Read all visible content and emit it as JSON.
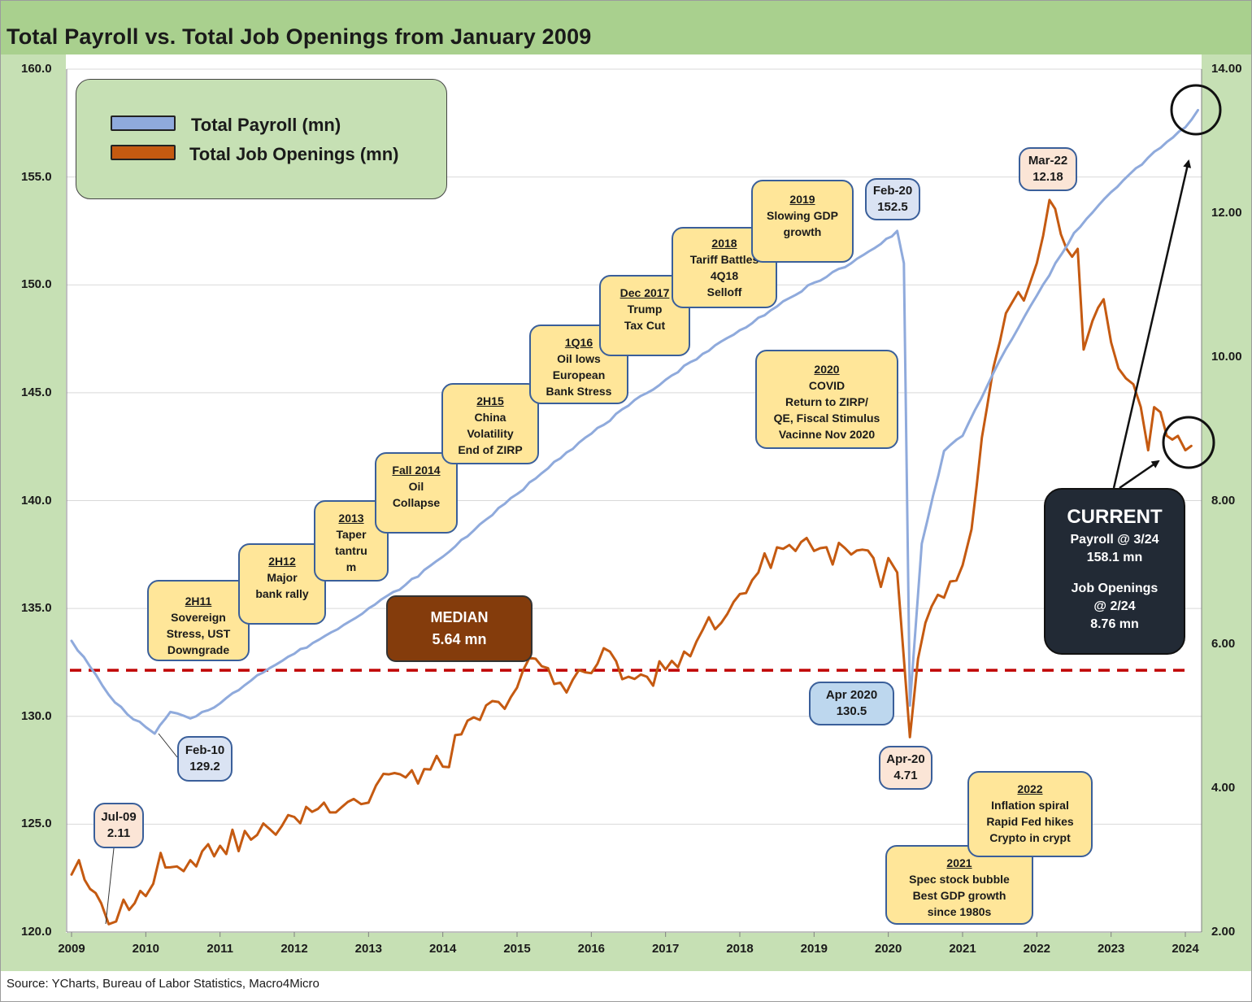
{
  "chart_data": {
    "type": "line",
    "title": "Total Payroll vs. Total Job Openings from January 2009",
    "source": "Source: YCharts, Bureau of Labor Statistics, Macro4Micro",
    "x_ticks": [
      "2009",
      "2010",
      "2011",
      "2012",
      "2013",
      "2014",
      "2015",
      "2016",
      "2017",
      "2018",
      "2019",
      "2020",
      "2021",
      "2022",
      "2023",
      "2024"
    ],
    "x_range": [
      2009.0,
      2024.25
    ],
    "y_left": {
      "range": [
        120.0,
        160.0
      ],
      "ticks": [
        "160.0",
        "155.0",
        "150.0",
        "145.0",
        "140.0",
        "135.0",
        "130.0",
        "125.0",
        "120.0"
      ]
    },
    "y_right": {
      "range": [
        2.0,
        14.0
      ],
      "ticks": [
        "14.00",
        "12.00",
        "10.00",
        "8.00",
        "6.00",
        "4.00",
        "2.00"
      ]
    },
    "grid": true,
    "legend": {
      "position": "top-left",
      "entries": [
        {
          "label": "Total Payroll (mn)",
          "color": "#8faadc"
        },
        {
          "label": "Total Job Openings (mn)",
          "color": "#c55a11"
        }
      ]
    },
    "series": [
      {
        "name": "Total Payroll (mn)",
        "axis": "left",
        "color": "#8faadc",
        "points": [
          [
            2009.0,
            133.5
          ],
          [
            2009.25,
            132.3
          ],
          [
            2009.5,
            131.0
          ],
          [
            2009.75,
            130.1
          ],
          [
            2010.0,
            129.5
          ],
          [
            2010.12,
            129.2
          ],
          [
            2010.33,
            130.2
          ],
          [
            2010.6,
            129.9
          ],
          [
            2011.0,
            130.6
          ],
          [
            2011.5,
            131.9
          ],
          [
            2012.0,
            132.9
          ],
          [
            2012.5,
            133.9
          ],
          [
            2013.0,
            135.0
          ],
          [
            2013.5,
            136.1
          ],
          [
            2014.0,
            137.4
          ],
          [
            2014.5,
            138.9
          ],
          [
            2015.0,
            140.3
          ],
          [
            2015.5,
            141.8
          ],
          [
            2016.0,
            143.1
          ],
          [
            2016.5,
            144.4
          ],
          [
            2017.0,
            145.6
          ],
          [
            2017.5,
            146.8
          ],
          [
            2018.0,
            147.9
          ],
          [
            2018.5,
            149.0
          ],
          [
            2019.0,
            150.1
          ],
          [
            2019.5,
            151.0
          ],
          [
            2019.9,
            151.9
          ],
          [
            2020.12,
            152.5
          ],
          [
            2020.21,
            151.0
          ],
          [
            2020.29,
            130.5
          ],
          [
            2020.45,
            138.0
          ],
          [
            2020.75,
            142.3
          ],
          [
            2021.0,
            143.0
          ],
          [
            2021.5,
            146.5
          ],
          [
            2022.0,
            149.5
          ],
          [
            2022.5,
            152.4
          ],
          [
            2023.0,
            154.3
          ],
          [
            2023.5,
            155.9
          ],
          [
            2024.0,
            157.3
          ],
          [
            2024.17,
            158.1
          ]
        ]
      },
      {
        "name": "Total Job Openings (mn)",
        "axis": "right",
        "color": "#c55a11",
        "points": [
          [
            2009.0,
            2.8
          ],
          [
            2009.1,
            3.0
          ],
          [
            2009.25,
            2.6
          ],
          [
            2009.4,
            2.4
          ],
          [
            2009.5,
            2.11
          ],
          [
            2009.7,
            2.45
          ],
          [
            2010.0,
            2.5
          ],
          [
            2010.2,
            3.1
          ],
          [
            2010.33,
            2.9
          ],
          [
            2010.6,
            3.0
          ],
          [
            2011.0,
            3.2
          ],
          [
            2011.5,
            3.35
          ],
          [
            2012.0,
            3.6
          ],
          [
            2012.4,
            3.8
          ],
          [
            2012.8,
            3.85
          ],
          [
            2013.0,
            3.8
          ],
          [
            2013.2,
            4.2
          ],
          [
            2013.5,
            4.15
          ],
          [
            2014.0,
            4.3
          ],
          [
            2014.25,
            4.75
          ],
          [
            2014.5,
            4.95
          ],
          [
            2014.75,
            5.2
          ],
          [
            2015.0,
            5.4
          ],
          [
            2015.25,
            5.8
          ],
          [
            2015.5,
            5.45
          ],
          [
            2016.0,
            5.6
          ],
          [
            2016.25,
            5.9
          ],
          [
            2016.5,
            5.55
          ],
          [
            2016.75,
            5.55
          ],
          [
            2017.0,
            5.65
          ],
          [
            2017.25,
            5.9
          ],
          [
            2017.5,
            6.2
          ],
          [
            2017.75,
            6.3
          ],
          [
            2018.0,
            6.7
          ],
          [
            2018.25,
            7.0
          ],
          [
            2018.5,
            7.35
          ],
          [
            2018.75,
            7.3
          ],
          [
            2018.9,
            7.48
          ],
          [
            2019.0,
            7.3
          ],
          [
            2019.5,
            7.25
          ],
          [
            2019.8,
            7.2
          ],
          [
            2019.9,
            6.8
          ],
          [
            2020.0,
            7.2
          ],
          [
            2020.12,
            7.0
          ],
          [
            2020.29,
            4.71
          ],
          [
            2020.4,
            5.8
          ],
          [
            2020.5,
            6.3
          ],
          [
            2020.75,
            6.65
          ],
          [
            2021.0,
            7.1
          ],
          [
            2021.12,
            7.6
          ],
          [
            2021.33,
            9.3
          ],
          [
            2021.5,
            10.2
          ],
          [
            2021.75,
            10.9
          ],
          [
            2021.9,
            11.0
          ],
          [
            2022.0,
            11.3
          ],
          [
            2022.17,
            12.18
          ],
          [
            2022.4,
            11.5
          ],
          [
            2022.55,
            11.5
          ],
          [
            2022.63,
            10.1
          ],
          [
            2022.75,
            10.5
          ],
          [
            2022.9,
            10.8
          ],
          [
            2023.0,
            10.2
          ],
          [
            2023.2,
            9.7
          ],
          [
            2023.4,
            9.3
          ],
          [
            2023.5,
            8.7
          ],
          [
            2023.58,
            9.3
          ],
          [
            2023.75,
            8.9
          ],
          [
            2023.9,
            8.9
          ],
          [
            2024.0,
            8.7
          ],
          [
            2024.08,
            8.76
          ]
        ]
      },
      {
        "name": "Median",
        "axis": "right",
        "style": "dashed",
        "color": "#c00000",
        "value": 5.64
      }
    ],
    "annotations": {
      "legend_payroll": "Total Payroll (mn)",
      "legend_openings": "Total Job Openings (mn)",
      "median_label": "MEDIAN",
      "median_value": "5.64 mn",
      "current_title": "CURRENT",
      "current_payroll_1": "Payroll @ 3/24",
      "current_payroll_2": "158.1 mn",
      "current_openings_1": "Job Openings",
      "current_openings_2": "@ 2/24",
      "current_openings_3": "8.76 mn",
      "events": {
        "e2h11": {
          "h": "2H11",
          "l1": "Sovereign",
          "l2": "Stress, UST",
          "l3": "Downgrade"
        },
        "e2h12": {
          "h": "2H12",
          "l1": "Major",
          "l2": "bank rally"
        },
        "e2013": {
          "h": "2013",
          "l1": "Taper",
          "l2": "tantru",
          "l3": "m"
        },
        "efall14": {
          "h": "Fall 2014",
          "l1": "Oil",
          "l2": "Collapse"
        },
        "e2h15": {
          "h": "2H15",
          "l1": "China",
          "l2": "Volatility",
          "l3": "End of ZIRP"
        },
        "e1q16": {
          "h": "1Q16",
          "l1": "Oil lows",
          "l2": "European",
          "l3": "Bank Stress"
        },
        "edec17": {
          "h": "Dec 2017",
          "l1": "Trump",
          "l2": "Tax Cut"
        },
        "e2018": {
          "h": "2018",
          "l1": "Tariff Battles",
          "l2": "4Q18",
          "l3": "Selloff"
        },
        "e2019": {
          "h": "2019",
          "l1": "Slowing GDP",
          "l2": "growth"
        },
        "e2020": {
          "h": "2020",
          "l1": "COVID",
          "l2": "Return to ZIRP/",
          "l3": "QE, Fiscal Stimulus",
          "l4": "Vacinne Nov 2020"
        },
        "e2021": {
          "h": "2021",
          "l1": "Spec stock bubble",
          "l2": "Best GDP growth",
          "l3": "since 1980s"
        },
        "e2022": {
          "h": "2022",
          "l1": "Inflation spiral",
          "l2": "Rapid Fed hikes",
          "l3": "Crypto in crypt"
        }
      },
      "points": {
        "feb10": {
          "l1": "Feb-10",
          "l2": "129.2"
        },
        "feb20": {
          "l1": "Feb-20",
          "l2": "152.5"
        },
        "apr2020": {
          "l1": "Apr 2020",
          "l2": "130.5"
        },
        "apr20": {
          "l1": "Apr-20",
          "l2": "4.71"
        },
        "jul09": {
          "l1": "Jul-09",
          "l2": "2.11"
        },
        "mar22": {
          "l1": "Mar-22",
          "l2": "12.18"
        }
      }
    }
  }
}
